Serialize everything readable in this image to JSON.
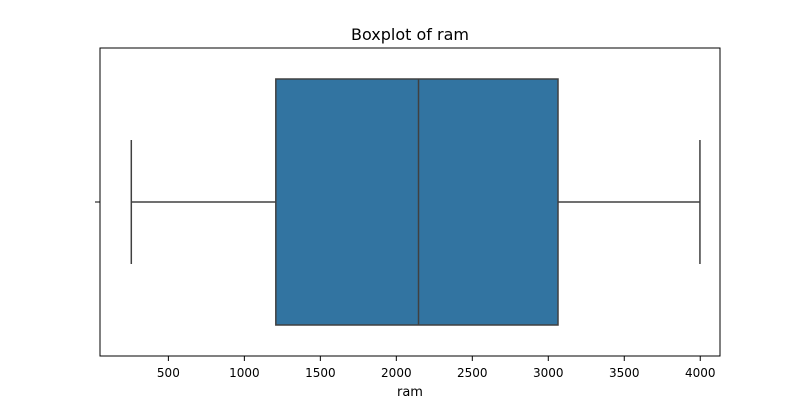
{
  "chart_data": {
    "type": "boxplot",
    "title": "Boxplot of ram",
    "xlabel": "ram",
    "ylabel": "",
    "xlim": [
      50,
      4130
    ],
    "x_ticks": [
      500,
      1000,
      1500,
      2000,
      2500,
      3000,
      3500,
      4000
    ],
    "grid": false,
    "box": {
      "min": 256,
      "q1": 1207,
      "median": 2146,
      "q3": 3064,
      "max": 3998
    },
    "colors": {
      "box_fill": "#3274a1",
      "line": "#404040",
      "frame": "#000000"
    }
  }
}
